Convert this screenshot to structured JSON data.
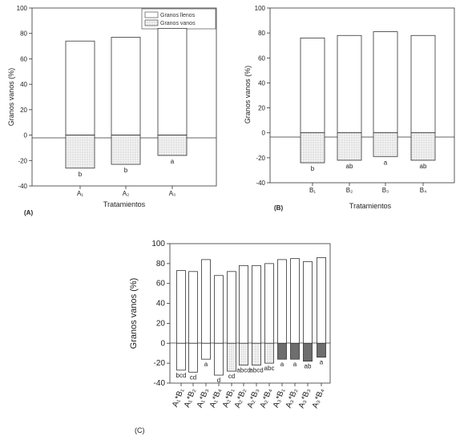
{
  "chart_data": [
    {
      "panel": "(A)",
      "type": "bar",
      "xlabel": "Tratamientos",
      "ylabel": "Granos vanos (%)",
      "ylim": [
        -40,
        100
      ],
      "yticks": [
        "-40",
        "-20",
        "0",
        "20",
        "40",
        "60",
        "80",
        "100"
      ],
      "categories": [
        "A₁",
        "A₂",
        "A₃"
      ],
      "legend": {
        "placement": "top-right",
        "entries": [
          "Granos llenos",
          "Granos vanos"
        ]
      },
      "series": [
        {
          "name": "Granos llenos",
          "values": [
            74,
            77,
            84
          ]
        },
        {
          "name": "Granos vanos",
          "values": [
            -26,
            -23,
            -16
          ]
        }
      ],
      "letters": [
        "b",
        "b",
        "a"
      ]
    },
    {
      "panel": "(B)",
      "type": "bar",
      "xlabel": "Tratamientos",
      "ylabel": "Granos vanos (%)",
      "ylim": [
        -40,
        100
      ],
      "yticks": [
        "-40",
        "-20",
        "0",
        "20",
        "40",
        "60",
        "80",
        "100"
      ],
      "categories": [
        "B₁",
        "B₂",
        "B₃",
        "B₄"
      ],
      "series": [
        {
          "name": "Granos llenos",
          "values": [
            76,
            78,
            81,
            78
          ]
        },
        {
          "name": "Granos vanos",
          "values": [
            -24,
            -22,
            -19,
            -22
          ]
        }
      ],
      "letters": [
        "b",
        "ab",
        "a",
        "ab"
      ]
    },
    {
      "panel": "(C)",
      "type": "bar",
      "xlabel": "",
      "ylabel": "Granos vanos (%)",
      "ylim": [
        -40,
        100
      ],
      "yticks": [
        "-40",
        "-20",
        "0",
        "20",
        "40",
        "60",
        "80",
        "100"
      ],
      "categories": [
        "A₁*B₁",
        "A₁*B₂",
        "A₁*B₃",
        "A₁*B₄",
        "A₂*B₁",
        "A₂*B₂",
        "A₂*B₃",
        "A₂*B₄",
        "A₃*B₁",
        "A₃*B₂",
        "A₃*B₃",
        "A₃*B₄"
      ],
      "series": [
        {
          "name": "Granos llenos",
          "values": [
            73,
            72,
            84,
            68,
            72,
            78,
            78,
            80,
            84,
            85,
            82,
            86
          ]
        },
        {
          "name": "Granos vanos",
          "values": [
            -27,
            -29,
            -16,
            -32,
            -28,
            -22,
            -22,
            -20,
            -16,
            -16,
            -18,
            -14
          ]
        }
      ],
      "letters": [
        "bcd",
        "cd",
        "a",
        "d",
        "cd",
        "abcd",
        "abcd",
        "abc",
        "a",
        "a",
        "ab",
        "a"
      ]
    }
  ],
  "colors": {
    "llenos": "#ffffff",
    "vanos_light": "#e3e3e3",
    "vanos_dark": "#6e6e6e",
    "axis": "#333333"
  }
}
